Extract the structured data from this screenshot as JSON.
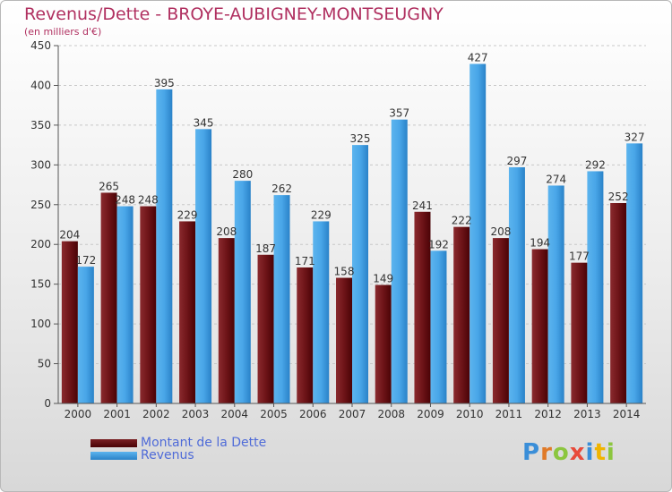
{
  "title": "Revenus/Dette - BROYE-AUBIGNEY-MONTSEUGNY",
  "subtitle": "(en milliers d'€)",
  "logo": {
    "text": "Proxiti"
  },
  "legend": [
    {
      "label": "Montant de la Dette",
      "color": "#6b0e14"
    },
    {
      "label": "Revenus",
      "color": "#3c9ae0"
    }
  ],
  "chart_data": {
    "type": "bar",
    "title": "Revenus/Dette - BROYE-AUBIGNEY-MONTSEUGNY",
    "ylabel": "(en milliers d'€)",
    "ylim": [
      0,
      450
    ],
    "yticks": [
      0,
      50,
      100,
      150,
      200,
      250,
      300,
      350,
      400,
      450
    ],
    "grid": true,
    "legend_position": "bottom-left",
    "categories": [
      "2000",
      "2001",
      "2002",
      "2003",
      "2004",
      "2005",
      "2006",
      "2007",
      "2008",
      "2009",
      "2010",
      "2011",
      "2012",
      "2013",
      "2014"
    ],
    "series": [
      {
        "name": "Montant de la Dette",
        "color": "#6b0e14",
        "values": [
          204,
          265,
          248,
          229,
          208,
          187,
          171,
          158,
          149,
          241,
          222,
          208,
          194,
          177,
          252
        ]
      },
      {
        "name": "Revenus",
        "color": "#3c9ae0",
        "values": [
          172,
          248,
          395,
          345,
          280,
          262,
          229,
          325,
          357,
          192,
          427,
          297,
          274,
          292,
          327
        ]
      }
    ]
  }
}
